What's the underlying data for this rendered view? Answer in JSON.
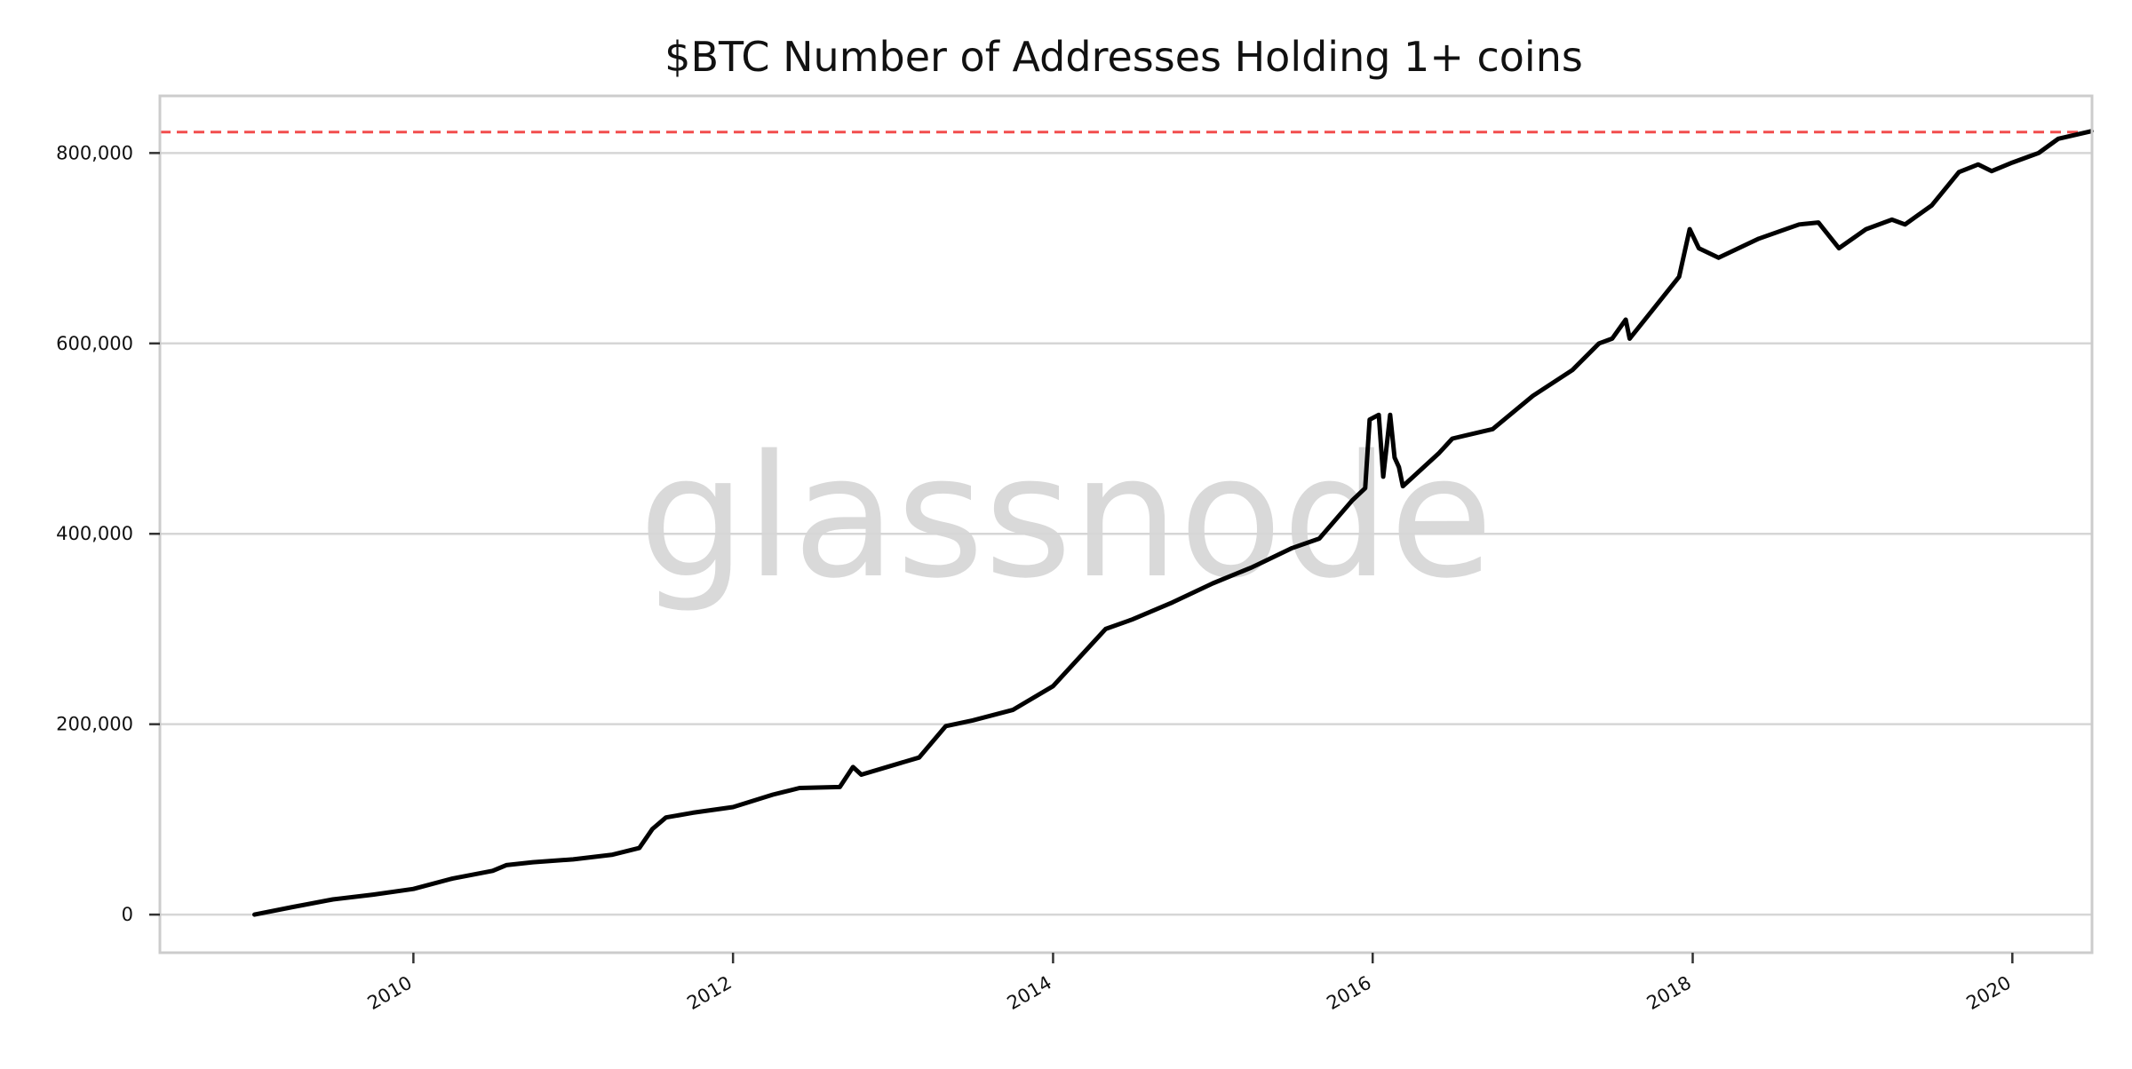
{
  "chart_data": {
    "type": "line",
    "title": "$BTC Number of Addresses Holding 1+ coins",
    "xlabel": "",
    "ylabel": "",
    "watermark": "glassnode",
    "xlim": [
      "2008-06-01",
      "2020-07-01"
    ],
    "ylim": [
      -40000,
      860000
    ],
    "x_ticks": [
      "2010",
      "2012",
      "2014",
      "2016",
      "2018",
      "2020"
    ],
    "y_ticks": [
      0,
      200000,
      400000,
      600000,
      800000
    ],
    "y_tick_labels": [
      "0",
      "200,000",
      "400,000",
      "600,000",
      "800,000"
    ],
    "grid": "horizontal",
    "reference_line": {
      "value": 822000,
      "color": "#f24d4d",
      "style": "dashed"
    },
    "series": [
      {
        "color": "#000000",
        "points": [
          [
            "2009-01-03",
            0
          ],
          [
            "2009-04-01",
            8000
          ],
          [
            "2009-07-01",
            16000
          ],
          [
            "2009-10-01",
            21000
          ],
          [
            "2010-01-01",
            27000
          ],
          [
            "2010-04-01",
            38000
          ],
          [
            "2010-07-01",
            46000
          ],
          [
            "2010-08-01",
            52000
          ],
          [
            "2010-10-01",
            55000
          ],
          [
            "2011-01-01",
            58000
          ],
          [
            "2011-04-01",
            63000
          ],
          [
            "2011-06-01",
            70000
          ],
          [
            "2011-07-01",
            90000
          ],
          [
            "2011-08-01",
            102000
          ],
          [
            "2011-10-01",
            107000
          ],
          [
            "2012-01-01",
            113000
          ],
          [
            "2012-04-01",
            126000
          ],
          [
            "2012-06-01",
            133000
          ],
          [
            "2012-09-01",
            134000
          ],
          [
            "2012-10-01",
            155000
          ],
          [
            "2012-10-20",
            147000
          ],
          [
            "2013-01-01",
            157000
          ],
          [
            "2013-03-01",
            165000
          ],
          [
            "2013-05-01",
            198000
          ],
          [
            "2013-07-01",
            204000
          ],
          [
            "2013-10-01",
            215000
          ],
          [
            "2014-01-01",
            240000
          ],
          [
            "2014-04-01",
            285000
          ],
          [
            "2014-05-01",
            300000
          ],
          [
            "2014-07-01",
            310000
          ],
          [
            "2014-10-01",
            328000
          ],
          [
            "2015-01-01",
            348000
          ],
          [
            "2015-04-01",
            365000
          ],
          [
            "2015-07-01",
            385000
          ],
          [
            "2015-09-01",
            395000
          ],
          [
            "2015-11-15",
            435000
          ],
          [
            "2015-12-15",
            448000
          ],
          [
            "2015-12-25",
            520000
          ],
          [
            "2016-01-15",
            525000
          ],
          [
            "2016-01-25",
            460000
          ],
          [
            "2016-02-10",
            525000
          ],
          [
            "2016-02-20",
            480000
          ],
          [
            "2016-03-01",
            470000
          ],
          [
            "2016-03-10",
            450000
          ],
          [
            "2016-06-01",
            485000
          ],
          [
            "2016-07-01",
            500000
          ],
          [
            "2016-10-01",
            510000
          ],
          [
            "2017-01-01",
            545000
          ],
          [
            "2017-04-01",
            572000
          ],
          [
            "2017-06-01",
            600000
          ],
          [
            "2017-07-01",
            605000
          ],
          [
            "2017-08-01",
            625000
          ],
          [
            "2017-08-10",
            605000
          ],
          [
            "2017-10-01",
            635000
          ],
          [
            "2017-12-01",
            670000
          ],
          [
            "2017-12-25",
            720000
          ],
          [
            "2018-01-15",
            700000
          ],
          [
            "2018-03-01",
            690000
          ],
          [
            "2018-06-01",
            710000
          ],
          [
            "2018-09-01",
            725000
          ],
          [
            "2018-10-15",
            727000
          ],
          [
            "2018-12-01",
            700000
          ],
          [
            "2019-02-01",
            720000
          ],
          [
            "2019-04-01",
            730000
          ],
          [
            "2019-05-01",
            725000
          ],
          [
            "2019-07-01",
            745000
          ],
          [
            "2019-09-01",
            780000
          ],
          [
            "2019-10-15",
            788000
          ],
          [
            "2019-11-15",
            781000
          ],
          [
            "2020-01-01",
            790000
          ],
          [
            "2020-03-01",
            800000
          ],
          [
            "2020-04-15",
            815000
          ],
          [
            "2020-06-30",
            823000
          ]
        ]
      }
    ]
  }
}
